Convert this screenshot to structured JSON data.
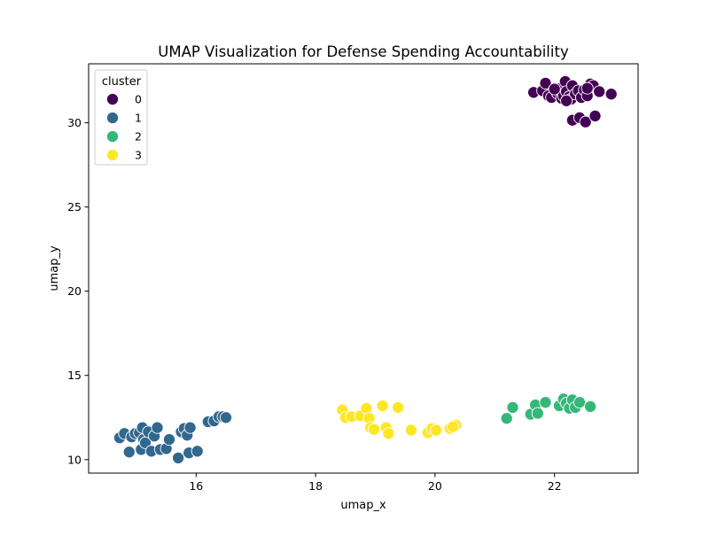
{
  "chart_data": {
    "type": "scatter",
    "title": "UMAP Visualization for Defense Spending Accountability",
    "xlabel": "umap_x",
    "ylabel": "umap_y",
    "xlim": [
      14.2,
      23.4
    ],
    "ylim": [
      9.2,
      33.5
    ],
    "xticks": [
      16,
      18,
      20,
      22
    ],
    "yticks": [
      10,
      15,
      20,
      25,
      30
    ],
    "grid": false,
    "legend": {
      "title": "cluster",
      "placement": "top-left"
    },
    "series": [
      {
        "name": "0",
        "color": "#440154",
        "points": [
          [
            21.65,
            31.8
          ],
          [
            21.8,
            31.9
          ],
          [
            21.85,
            32.35
          ],
          [
            21.9,
            31.6
          ],
          [
            21.95,
            31.5
          ],
          [
            22.05,
            31.75
          ],
          [
            22.1,
            32.05
          ],
          [
            22.12,
            31.45
          ],
          [
            22.15,
            31.6
          ],
          [
            22.18,
            32.45
          ],
          [
            22.2,
            31.85
          ],
          [
            22.25,
            31.55
          ],
          [
            22.28,
            31.4
          ],
          [
            22.3,
            32.2
          ],
          [
            22.35,
            31.7
          ],
          [
            22.4,
            31.9
          ],
          [
            22.45,
            31.5
          ],
          [
            22.5,
            31.95
          ],
          [
            22.55,
            31.6
          ],
          [
            22.6,
            32.3
          ],
          [
            22.65,
            32.2
          ],
          [
            22.75,
            31.85
          ],
          [
            22.95,
            31.7
          ],
          [
            22.3,
            30.15
          ],
          [
            22.42,
            30.3
          ],
          [
            22.52,
            30.05
          ],
          [
            22.68,
            30.4
          ],
          [
            22.55,
            32.05
          ],
          [
            22.0,
            32.0
          ],
          [
            22.2,
            31.3
          ]
        ]
      },
      {
        "name": "1",
        "color": "#31688e",
        "points": [
          [
            14.72,
            11.3
          ],
          [
            14.8,
            11.55
          ],
          [
            14.88,
            10.45
          ],
          [
            14.92,
            11.35
          ],
          [
            14.98,
            11.55
          ],
          [
            15.05,
            11.6
          ],
          [
            15.08,
            10.6
          ],
          [
            15.1,
            11.9
          ],
          [
            15.12,
            11.2
          ],
          [
            15.15,
            11.0
          ],
          [
            15.2,
            11.65
          ],
          [
            15.25,
            10.5
          ],
          [
            15.3,
            11.4
          ],
          [
            15.35,
            11.9
          ],
          [
            15.4,
            10.6
          ],
          [
            15.5,
            10.65
          ],
          [
            15.55,
            11.2
          ],
          [
            15.7,
            10.1
          ],
          [
            15.75,
            11.65
          ],
          [
            15.8,
            11.85
          ],
          [
            15.85,
            11.45
          ],
          [
            15.88,
            10.4
          ],
          [
            15.9,
            11.9
          ],
          [
            16.02,
            10.5
          ],
          [
            16.2,
            12.25
          ],
          [
            16.3,
            12.3
          ],
          [
            16.38,
            12.55
          ],
          [
            16.45,
            12.55
          ],
          [
            16.5,
            12.5
          ]
        ]
      },
      {
        "name": "2",
        "color": "#35b779",
        "points": [
          [
            21.2,
            12.45
          ],
          [
            21.3,
            13.1
          ],
          [
            21.6,
            12.7
          ],
          [
            21.68,
            13.25
          ],
          [
            21.72,
            12.75
          ],
          [
            21.85,
            13.4
          ],
          [
            22.08,
            13.2
          ],
          [
            22.15,
            13.6
          ],
          [
            22.2,
            13.35
          ],
          [
            22.25,
            13.05
          ],
          [
            22.3,
            13.55
          ],
          [
            22.35,
            13.1
          ],
          [
            22.42,
            13.4
          ],
          [
            22.6,
            13.15
          ]
        ]
      },
      {
        "name": "3",
        "color": "#fde725",
        "points": [
          [
            18.45,
            12.95
          ],
          [
            18.5,
            12.5
          ],
          [
            18.6,
            12.55
          ],
          [
            18.75,
            12.6
          ],
          [
            18.85,
            13.05
          ],
          [
            18.9,
            12.45
          ],
          [
            18.92,
            11.9
          ],
          [
            18.98,
            11.8
          ],
          [
            19.12,
            13.2
          ],
          [
            19.18,
            11.9
          ],
          [
            19.22,
            11.55
          ],
          [
            19.38,
            13.1
          ],
          [
            19.6,
            11.75
          ],
          [
            19.88,
            11.6
          ],
          [
            19.95,
            11.85
          ],
          [
            20.02,
            11.75
          ],
          [
            20.25,
            11.85
          ],
          [
            20.35,
            12.05
          ],
          [
            20.3,
            11.95
          ]
        ]
      }
    ]
  }
}
